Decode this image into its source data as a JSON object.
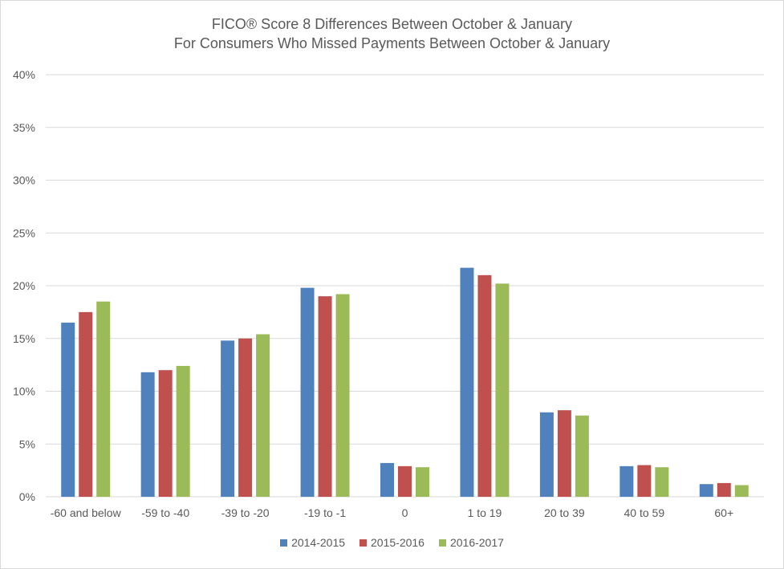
{
  "chart_data": {
    "type": "bar",
    "title": "FICO® Score 8 Differences Between October & January",
    "subtitle": "For Consumers Who Missed Payments Between October & January",
    "xlabel": "",
    "ylabel": "",
    "ylim": [
      0,
      40
    ],
    "y_ticks": [
      "0%",
      "5%",
      "10%",
      "15%",
      "20%",
      "25%",
      "30%",
      "35%",
      "40%"
    ],
    "grid": true,
    "legend_position": "bottom",
    "categories": [
      "-60 and below",
      "-59 to -40",
      "-39 to -20",
      "-19 to -1",
      "0",
      "1 to 19",
      "20 to 39",
      "40 to 59",
      "60+"
    ],
    "series": [
      {
        "name": "2014-2015",
        "color": "#4f81bd",
        "values": [
          16.5,
          11.8,
          14.8,
          19.8,
          3.2,
          21.7,
          8.0,
          2.9,
          1.2
        ]
      },
      {
        "name": "2015-2016",
        "color": "#c0504d",
        "values": [
          17.5,
          12.0,
          15.0,
          19.0,
          2.9,
          21.0,
          8.2,
          3.0,
          1.3
        ]
      },
      {
        "name": "2016-2017",
        "color": "#9bbb59",
        "values": [
          18.5,
          12.4,
          15.4,
          19.2,
          2.8,
          20.2,
          7.7,
          2.8,
          1.1
        ]
      }
    ]
  }
}
